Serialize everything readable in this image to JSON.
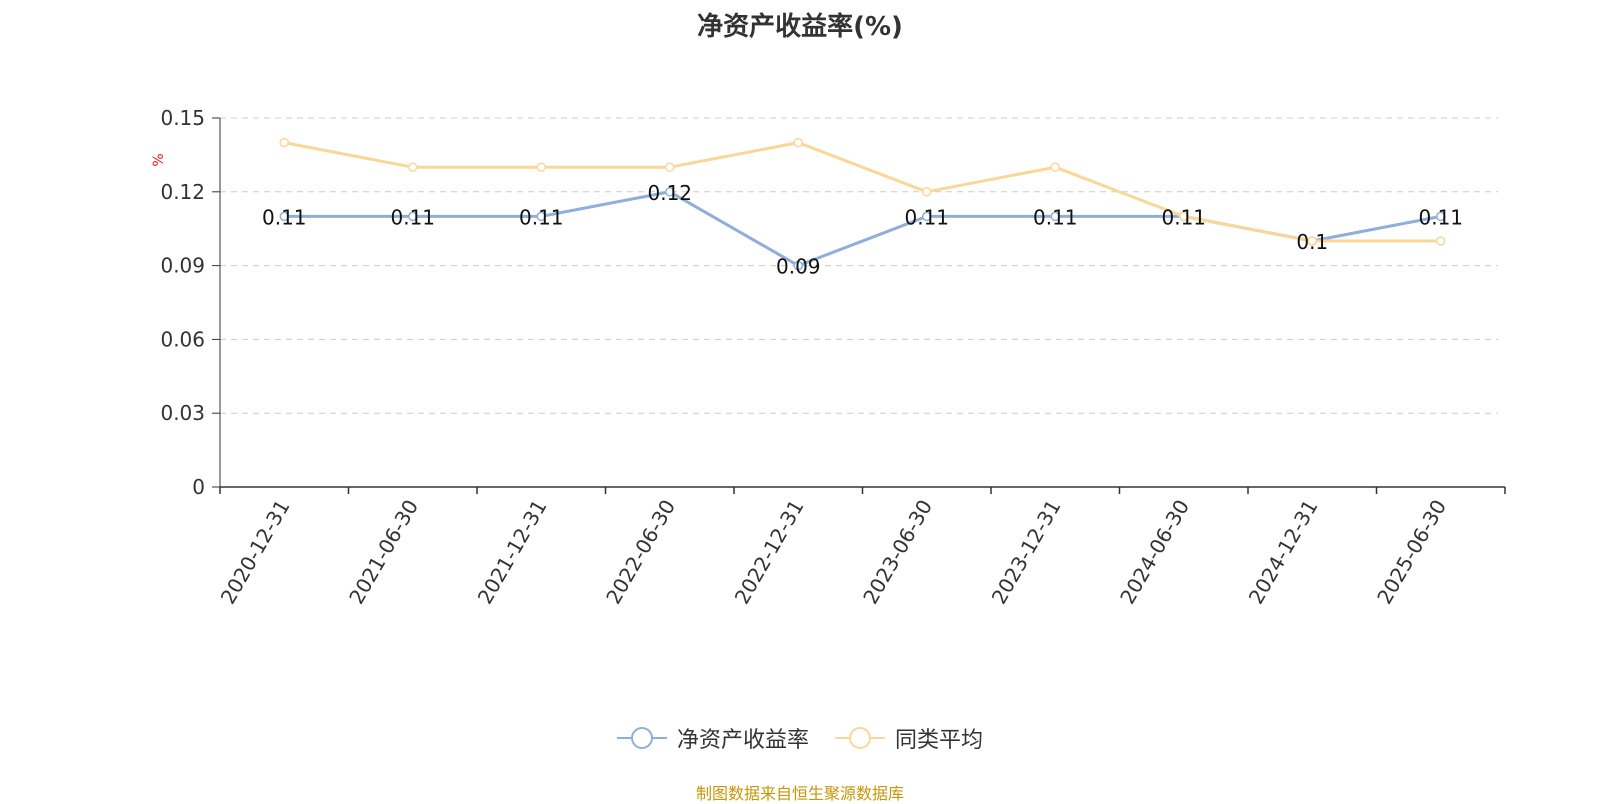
{
  "chart_data": {
    "type": "line",
    "title": "净资产收益率(%)",
    "ylabel": "%",
    "xlabel": "",
    "categories": [
      "2020-12-31",
      "2021-06-30",
      "2021-12-31",
      "2022-06-30",
      "2022-12-31",
      "2023-06-30",
      "2023-12-31",
      "2024-06-30",
      "2024-12-31",
      "2025-06-30"
    ],
    "ylim": [
      0,
      0.15
    ],
    "yticks": [
      "0",
      "0.03",
      "0.06",
      "0.09",
      "0.12",
      "0.15"
    ],
    "grid": true,
    "legend_position": "bottom",
    "series": [
      {
        "name": "净资产收益率",
        "color": "#8eaedc",
        "values": [
          0.11,
          0.11,
          0.11,
          0.12,
          0.09,
          0.11,
          0.11,
          0.11,
          0.1,
          0.11
        ],
        "labels": [
          "0.11",
          "0.11",
          "0.11",
          "0.12",
          "0.09",
          "0.11",
          "0.11",
          "0.11",
          "0.1",
          "0.11"
        ]
      },
      {
        "name": "同类平均",
        "color": "#fad797",
        "values": [
          0.14,
          0.13,
          0.13,
          0.13,
          0.14,
          0.12,
          0.13,
          0.11,
          0.1,
          0.1
        ]
      }
    ]
  },
  "footer": {
    "source": "制图数据来自恒生聚源数据库"
  }
}
